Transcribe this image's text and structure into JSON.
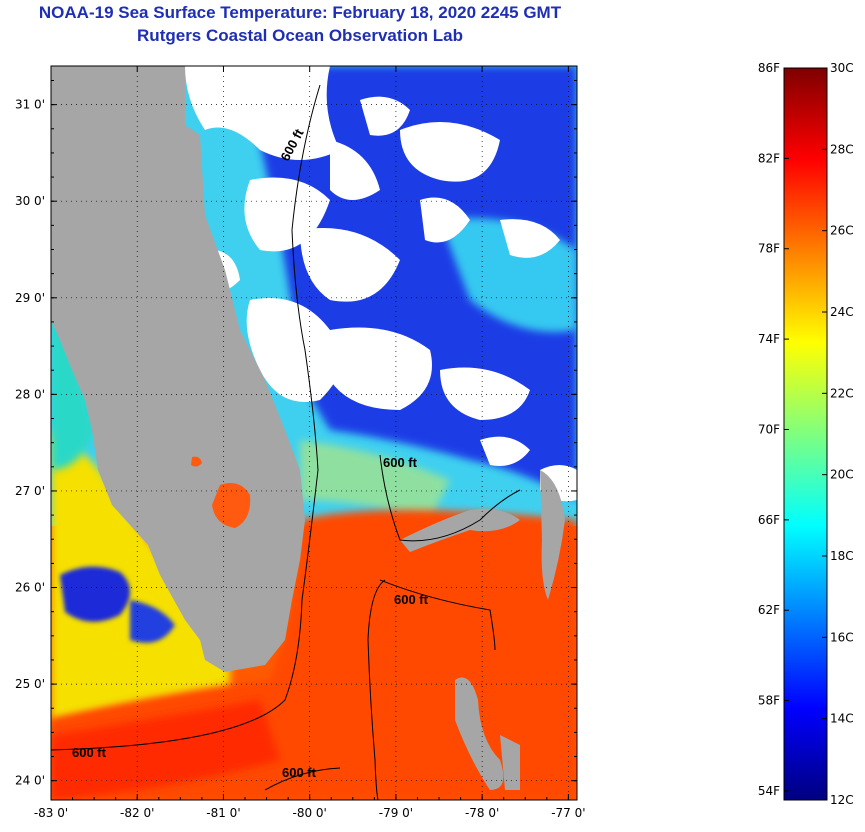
{
  "title": "NOAA-19 Sea Surface Temperature:  February 18, 2020 2245 GMT",
  "subtitle": "Rutgers Coastal Ocean Observation Lab",
  "map": {
    "lon_range": [
      -83,
      -76.9
    ],
    "lat_range": [
      23.8,
      31.4
    ],
    "lon_ticks": [
      "-83 0'",
      "-82 0'",
      "-81 0'",
      "-80 0'",
      "-79 0'",
      "-78 0'",
      "-77 0'"
    ],
    "lon_values": [
      -83,
      -82,
      -81,
      -80,
      -79,
      -78,
      -77
    ],
    "lat_ticks": [
      "31 0'",
      "30 0'",
      "29 0'",
      "28 0'",
      "27 0'",
      "26 0'",
      "25 0'",
      "24 0'"
    ],
    "lat_values": [
      31,
      30,
      29,
      28,
      27,
      26,
      25,
      24
    ],
    "grid": "dotted",
    "contour_label": "600 ft",
    "land_color": "#a6a6a6",
    "cloud_color": "#ffffff"
  },
  "colorbar": {
    "fahrenheit_labels": [
      "86F",
      "82F",
      "78F",
      "74F",
      "70F",
      "66F",
      "62F",
      "58F",
      "54F"
    ],
    "fahrenheit_values": [
      86,
      82,
      78,
      74,
      70,
      66,
      62,
      58,
      54
    ],
    "celsius_labels": [
      "30C",
      "28C",
      "26C",
      "24C",
      "22C",
      "20C",
      "18C",
      "16C",
      "14C",
      "12C"
    ],
    "celsius_values": [
      30,
      28,
      26,
      24,
      22,
      20,
      18,
      16,
      14,
      12
    ],
    "range_c": [
      12,
      30
    ],
    "colors": [
      "#00007f",
      "#0000ff",
      "#007fff",
      "#00ffff",
      "#7fff7f",
      "#ffff00",
      "#ff7f00",
      "#ff0000",
      "#7f0000"
    ]
  }
}
